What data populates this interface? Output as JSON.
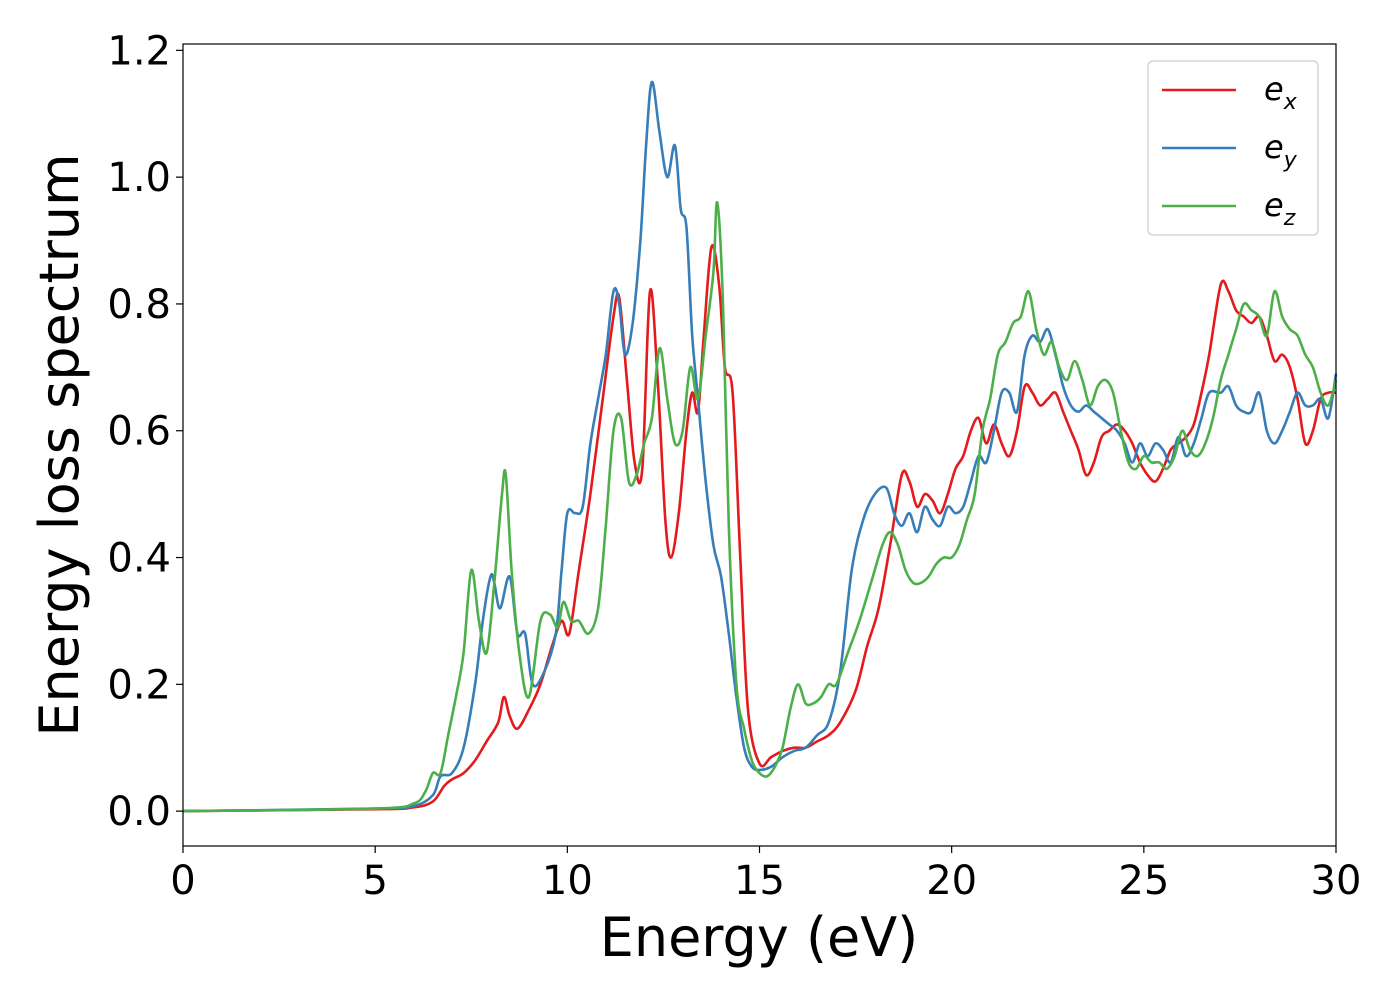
{
  "chart_data": {
    "type": "line",
    "xlabel": "Energy (eV)",
    "ylabel": "Energy loss spectrum",
    "xlim": [
      0,
      30
    ],
    "ylim": [
      -0.055,
      1.21
    ],
    "xticks": [
      0,
      5,
      10,
      15,
      20,
      25,
      30
    ],
    "yticks": [
      0.0,
      0.2,
      0.4,
      0.6,
      0.8,
      1.0,
      1.2
    ],
    "xtick_labels": [
      "0",
      "5",
      "10",
      "15",
      "20",
      "25",
      "30"
    ],
    "ytick_labels": [
      "0.0",
      "0.2",
      "0.4",
      "0.6",
      "0.8",
      "1.0",
      "1.2"
    ],
    "grid": false,
    "legend_position": "top-right",
    "series": [
      {
        "name": "e_x",
        "base": "e",
        "sub": "x",
        "color": "#e41a1c",
        "x": [
          0,
          5,
          6,
          6.5,
          6.8,
          7.0,
          7.3,
          7.6,
          7.9,
          8.2,
          8.35,
          8.5,
          8.7,
          9.0,
          9.3,
          9.6,
          9.85,
          10.05,
          10.3,
          10.6,
          10.9,
          11.2,
          11.35,
          11.55,
          11.75,
          11.95,
          12.15,
          12.35,
          12.55,
          12.7,
          12.9,
          13.1,
          13.25,
          13.4,
          13.55,
          13.75,
          13.95,
          14.1,
          14.3,
          14.5,
          14.7,
          15.0,
          15.3,
          15.6,
          15.9,
          16.2,
          16.5,
          16.8,
          17.1,
          17.5,
          17.8,
          18.1,
          18.4,
          18.7,
          18.9,
          19.1,
          19.3,
          19.5,
          19.7,
          19.9,
          20.1,
          20.3,
          20.5,
          20.7,
          20.9,
          21.1,
          21.3,
          21.5,
          21.7,
          21.9,
          22.1,
          22.3,
          22.5,
          22.7,
          22.9,
          23.1,
          23.3,
          23.5,
          23.7,
          23.9,
          24.1,
          24.3,
          24.5,
          24.7,
          24.9,
          25.1,
          25.3,
          25.5,
          25.7,
          25.9,
          26.1,
          26.3,
          26.5,
          26.7,
          27.0,
          27.2,
          27.4,
          27.6,
          27.8,
          28.0,
          28.2,
          28.4,
          28.6,
          28.8,
          29.0,
          29.2,
          29.4,
          29.6,
          29.8,
          30.0
        ],
        "y": [
          0,
          0.003,
          0.006,
          0.015,
          0.04,
          0.05,
          0.06,
          0.08,
          0.11,
          0.14,
          0.18,
          0.15,
          0.13,
          0.16,
          0.2,
          0.26,
          0.3,
          0.28,
          0.38,
          0.5,
          0.64,
          0.78,
          0.81,
          0.68,
          0.55,
          0.54,
          0.82,
          0.68,
          0.46,
          0.4,
          0.47,
          0.6,
          0.66,
          0.63,
          0.75,
          0.89,
          0.83,
          0.7,
          0.66,
          0.4,
          0.16,
          0.075,
          0.085,
          0.095,
          0.1,
          0.1,
          0.11,
          0.12,
          0.14,
          0.19,
          0.26,
          0.32,
          0.42,
          0.53,
          0.52,
          0.48,
          0.5,
          0.49,
          0.47,
          0.5,
          0.54,
          0.56,
          0.6,
          0.62,
          0.58,
          0.61,
          0.58,
          0.56,
          0.6,
          0.67,
          0.66,
          0.64,
          0.65,
          0.66,
          0.63,
          0.6,
          0.57,
          0.53,
          0.55,
          0.59,
          0.6,
          0.61,
          0.6,
          0.58,
          0.55,
          0.53,
          0.52,
          0.54,
          0.57,
          0.58,
          0.59,
          0.61,
          0.66,
          0.72,
          0.83,
          0.82,
          0.79,
          0.78,
          0.77,
          0.78,
          0.75,
          0.71,
          0.72,
          0.7,
          0.65,
          0.58,
          0.6,
          0.65,
          0.66,
          0.66
        ]
      },
      {
        "name": "e_y",
        "base": "e",
        "sub": "y",
        "color": "#377eb8",
        "x": [
          0,
          5,
          6,
          6.5,
          6.7,
          7.0,
          7.3,
          7.6,
          7.8,
          8.0,
          8.1,
          8.25,
          8.5,
          8.7,
          8.9,
          9.1,
          9.4,
          9.7,
          9.85,
          10.0,
          10.2,
          10.4,
          10.6,
          10.8,
          11.0,
          11.2,
          11.35,
          11.5,
          11.7,
          11.9,
          12.05,
          12.2,
          12.4,
          12.6,
          12.8,
          12.95,
          13.1,
          13.25,
          13.4,
          13.6,
          13.8,
          14.0,
          14.2,
          14.4,
          14.6,
          14.8,
          15.0,
          15.3,
          15.6,
          15.9,
          16.2,
          16.5,
          16.8,
          17.1,
          17.4,
          17.7,
          18.0,
          18.3,
          18.5,
          18.7,
          18.9,
          19.1,
          19.3,
          19.5,
          19.7,
          19.9,
          20.1,
          20.3,
          20.5,
          20.7,
          20.9,
          21.1,
          21.3,
          21.5,
          21.7,
          21.9,
          22.1,
          22.3,
          22.5,
          22.7,
          22.9,
          23.1,
          23.3,
          23.5,
          23.7,
          23.9,
          24.1,
          24.3,
          24.5,
          24.7,
          24.9,
          25.1,
          25.3,
          25.5,
          25.7,
          25.9,
          26.1,
          26.3,
          26.5,
          26.7,
          27.0,
          27.2,
          27.4,
          27.6,
          27.8,
          28.0,
          28.2,
          28.4,
          28.6,
          28.8,
          29.0,
          29.2,
          29.4,
          29.6,
          29.8,
          30.0
        ],
        "y": [
          0,
          0.004,
          0.008,
          0.025,
          0.055,
          0.06,
          0.1,
          0.2,
          0.3,
          0.37,
          0.36,
          0.32,
          0.37,
          0.28,
          0.28,
          0.2,
          0.22,
          0.28,
          0.38,
          0.47,
          0.47,
          0.48,
          0.58,
          0.65,
          0.72,
          0.82,
          0.8,
          0.72,
          0.77,
          0.9,
          1.05,
          1.15,
          1.07,
          1.0,
          1.05,
          0.95,
          0.92,
          0.75,
          0.65,
          0.52,
          0.42,
          0.37,
          0.28,
          0.18,
          0.1,
          0.07,
          0.065,
          0.07,
          0.085,
          0.095,
          0.1,
          0.12,
          0.14,
          0.22,
          0.38,
          0.46,
          0.5,
          0.51,
          0.47,
          0.45,
          0.47,
          0.44,
          0.48,
          0.46,
          0.45,
          0.48,
          0.47,
          0.48,
          0.52,
          0.56,
          0.55,
          0.6,
          0.66,
          0.66,
          0.63,
          0.72,
          0.75,
          0.74,
          0.76,
          0.72,
          0.67,
          0.64,
          0.63,
          0.64,
          0.63,
          0.62,
          0.61,
          0.6,
          0.58,
          0.55,
          0.58,
          0.56,
          0.58,
          0.57,
          0.55,
          0.59,
          0.56,
          0.58,
          0.62,
          0.66,
          0.66,
          0.67,
          0.64,
          0.63,
          0.63,
          0.66,
          0.6,
          0.58,
          0.6,
          0.63,
          0.66,
          0.64,
          0.64,
          0.65,
          0.62,
          0.69
        ]
      },
      {
        "name": "e_z",
        "base": "e",
        "sub": "z",
        "color": "#4daf4a",
        "x": [
          0,
          5,
          6,
          6.3,
          6.5,
          6.7,
          6.9,
          7.1,
          7.3,
          7.5,
          7.7,
          7.9,
          8.1,
          8.3,
          8.4,
          8.55,
          8.75,
          9.0,
          9.3,
          9.55,
          9.75,
          9.9,
          10.1,
          10.3,
          10.55,
          10.8,
          11.0,
          11.2,
          11.4,
          11.6,
          11.8,
          12.0,
          12.2,
          12.4,
          12.6,
          12.8,
          13.0,
          13.2,
          13.4,
          13.6,
          13.8,
          13.9,
          14.05,
          14.2,
          14.4,
          14.6,
          14.8,
          15.0,
          15.2,
          15.4,
          15.6,
          15.8,
          16.0,
          16.2,
          16.4,
          16.6,
          16.8,
          17.0,
          17.3,
          17.6,
          17.9,
          18.2,
          18.4,
          18.6,
          18.8,
          19.0,
          19.2,
          19.4,
          19.6,
          19.8,
          20.0,
          20.2,
          20.4,
          20.6,
          20.8,
          21.0,
          21.2,
          21.4,
          21.6,
          21.8,
          22.0,
          22.2,
          22.4,
          22.6,
          22.8,
          23.0,
          23.2,
          23.4,
          23.6,
          23.8,
          24.0,
          24.2,
          24.4,
          24.6,
          24.8,
          25.0,
          25.2,
          25.4,
          25.6,
          25.8,
          26.0,
          26.2,
          26.4,
          26.6,
          26.8,
          27.0,
          27.2,
          27.4,
          27.6,
          27.8,
          28.0,
          28.2,
          28.4,
          28.6,
          28.8,
          29.0,
          29.2,
          29.4,
          29.6,
          29.8,
          30.0
        ],
        "y": [
          0,
          0.004,
          0.012,
          0.03,
          0.06,
          0.06,
          0.12,
          0.18,
          0.25,
          0.38,
          0.3,
          0.25,
          0.36,
          0.5,
          0.53,
          0.38,
          0.25,
          0.18,
          0.3,
          0.31,
          0.29,
          0.33,
          0.3,
          0.3,
          0.28,
          0.32,
          0.45,
          0.6,
          0.62,
          0.52,
          0.53,
          0.58,
          0.62,
          0.73,
          0.65,
          0.58,
          0.6,
          0.7,
          0.65,
          0.75,
          0.85,
          0.96,
          0.8,
          0.45,
          0.2,
          0.13,
          0.08,
          0.06,
          0.055,
          0.07,
          0.1,
          0.16,
          0.2,
          0.17,
          0.17,
          0.18,
          0.2,
          0.2,
          0.25,
          0.3,
          0.36,
          0.42,
          0.44,
          0.42,
          0.38,
          0.36,
          0.36,
          0.37,
          0.39,
          0.4,
          0.4,
          0.42,
          0.46,
          0.5,
          0.6,
          0.65,
          0.72,
          0.74,
          0.77,
          0.78,
          0.82,
          0.76,
          0.72,
          0.74,
          0.7,
          0.68,
          0.71,
          0.68,
          0.64,
          0.67,
          0.68,
          0.66,
          0.6,
          0.55,
          0.54,
          0.56,
          0.55,
          0.55,
          0.54,
          0.56,
          0.6,
          0.57,
          0.56,
          0.58,
          0.62,
          0.68,
          0.72,
          0.76,
          0.8,
          0.79,
          0.78,
          0.75,
          0.82,
          0.78,
          0.76,
          0.75,
          0.72,
          0.7,
          0.66,
          0.64,
          0.68
        ]
      }
    ]
  }
}
